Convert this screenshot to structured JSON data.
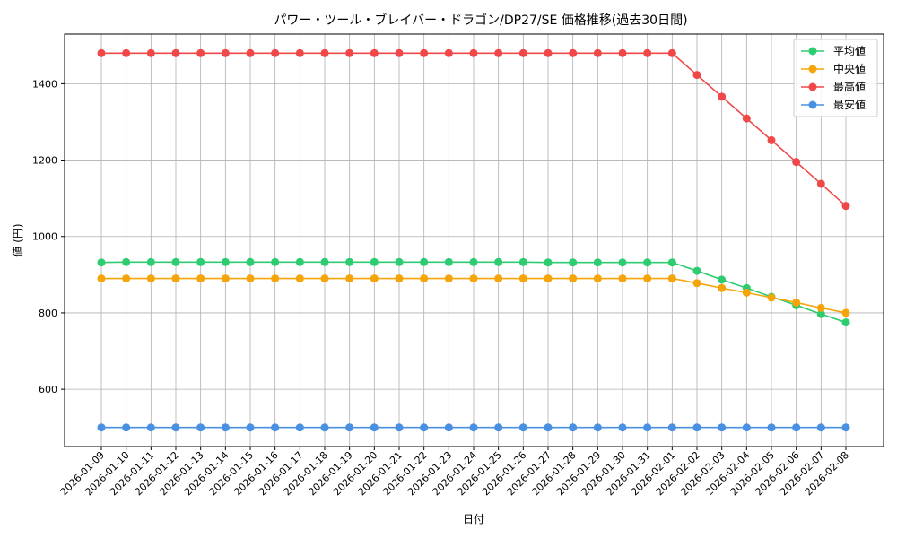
{
  "chart_data": {
    "type": "line",
    "title": "パワー・ツール・ブレイバー・ドラゴン/DP27/SE 価格推移(過去30日間)",
    "xlabel": "日付",
    "ylabel": "値 (円)",
    "ylim": [
      450,
      1530
    ],
    "yticks": [
      600,
      800,
      1000,
      1200,
      1400
    ],
    "grid": true,
    "legend_position": "top-right",
    "categories": [
      "2026-01-09",
      "2026-01-10",
      "2026-01-11",
      "2026-01-12",
      "2026-01-13",
      "2026-01-14",
      "2026-01-15",
      "2026-01-16",
      "2026-01-17",
      "2026-01-18",
      "2026-01-19",
      "2026-01-20",
      "2026-01-21",
      "2026-01-22",
      "2026-01-23",
      "2026-01-24",
      "2026-01-25",
      "2026-01-26",
      "2026-01-27",
      "2026-01-28",
      "2026-01-29",
      "2026-01-30",
      "2026-01-31",
      "2026-02-01",
      "2026-02-02",
      "2026-02-03",
      "2026-02-04",
      "2026-02-05",
      "2026-02-06",
      "2026-02-07",
      "2026-02-08"
    ],
    "series": [
      {
        "name": "平均値",
        "color": "#2ecc71",
        "values": [
          932,
          933,
          933,
          933,
          933,
          933,
          933,
          933,
          933,
          933,
          933,
          933,
          933,
          933,
          933,
          933,
          933,
          933,
          932,
          932,
          932,
          932,
          932,
          932,
          910,
          887,
          865,
          842,
          820,
          797,
          775
        ]
      },
      {
        "name": "中央値",
        "color": "#f5a50a",
        "values": [
          890,
          890,
          890,
          890,
          890,
          890,
          890,
          890,
          890,
          890,
          890,
          890,
          890,
          890,
          890,
          890,
          890,
          890,
          890,
          890,
          890,
          890,
          890,
          890,
          878,
          865,
          853,
          840,
          827,
          813,
          800
        ]
      },
      {
        "name": "最高値",
        "color": "#f04848",
        "values": [
          1480,
          1480,
          1480,
          1480,
          1480,
          1480,
          1480,
          1480,
          1480,
          1480,
          1480,
          1480,
          1480,
          1480,
          1480,
          1480,
          1480,
          1480,
          1480,
          1480,
          1480,
          1480,
          1480,
          1480,
          1423,
          1366,
          1309,
          1252,
          1195,
          1138,
          1080
        ]
      },
      {
        "name": "最安値",
        "color": "#4a90e2",
        "values": [
          500,
          500,
          500,
          500,
          500,
          500,
          500,
          500,
          500,
          500,
          500,
          500,
          500,
          500,
          500,
          500,
          500,
          500,
          500,
          500,
          500,
          500,
          500,
          500,
          500,
          500,
          500,
          500,
          500,
          500,
          500
        ]
      }
    ]
  }
}
